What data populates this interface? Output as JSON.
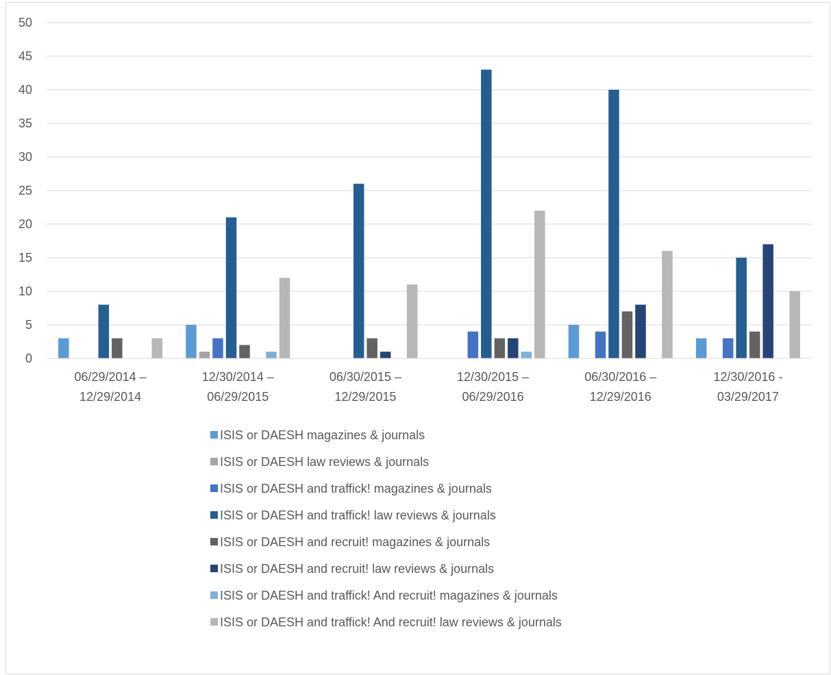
{
  "chart_data": {
    "type": "bar",
    "title": "",
    "xlabel": "",
    "ylabel": "",
    "ylim": [
      0,
      50
    ],
    "yticks": [
      0,
      5,
      10,
      15,
      20,
      25,
      30,
      35,
      40,
      45,
      50
    ],
    "grid": true,
    "legend_position": "bottom",
    "categories": [
      [
        "06/29/2014 –",
        "12/29/2014"
      ],
      [
        "12/30/2014 –",
        "06/29/2015"
      ],
      [
        "06/30/2015 –",
        "12/29/2015"
      ],
      [
        "12/30/2015 –",
        "06/29/2016"
      ],
      [
        "06/30/2016 –",
        "12/29/2016"
      ],
      [
        "12/30/2016 -",
        "03/29/2017"
      ]
    ],
    "series": [
      {
        "name": "ISIS or DAESH magazines & journals",
        "color": "#5b9bd5",
        "values": [
          3,
          5,
          0,
          0,
          5,
          3
        ]
      },
      {
        "name": "ISIS or DAESH law reviews  & journals",
        "color": "#a5a5a5",
        "values": [
          0,
          1,
          0,
          0,
          0,
          0
        ]
      },
      {
        "name": "ISIS or DAESH and traffick!  magazines & journals",
        "color": "#4472c4",
        "values": [
          0,
          3,
          0,
          4,
          4,
          3
        ]
      },
      {
        "name": "ISIS or DAESH and traffick! law reviews  & journals",
        "color": "#255e91",
        "values": [
          8,
          21,
          26,
          43,
          40,
          15
        ]
      },
      {
        "name": "ISIS or DAESH and recruit! magazines & journals",
        "color": "#636363",
        "values": [
          3,
          2,
          3,
          3,
          7,
          4
        ]
      },
      {
        "name": "ISIS or DAESH and recruit! law reviews  & journals",
        "color": "#264478",
        "values": [
          0,
          0,
          1,
          3,
          8,
          17
        ]
      },
      {
        "name": "ISIS or DAESH and traffick! And recruit! magazines & journals",
        "color": "#7cafdd",
        "values": [
          0,
          1,
          0,
          1,
          0,
          0
        ]
      },
      {
        "name": "ISIS or DAESH and traffick! And recruit! law reviews  & journals",
        "color": "#b7b7b7",
        "values": [
          3,
          12,
          11,
          22,
          16,
          10
        ]
      }
    ]
  }
}
